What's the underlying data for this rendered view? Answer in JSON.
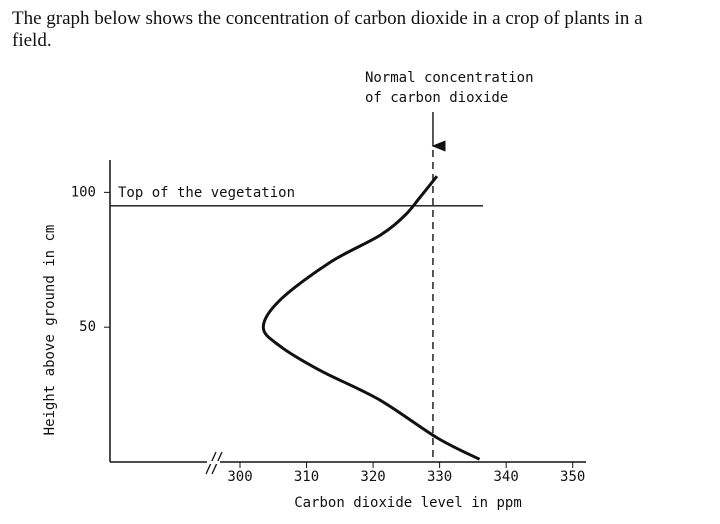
{
  "question": "The graph below shows the concentration of carbon dioxide in a crop of plants in a field.",
  "chart_data": {
    "type": "line",
    "xlabel": "Carbon dioxide level in ppm",
    "ylabel": "Height above ground in cm",
    "x": [
      336,
      329.6,
      321,
      312,
      306,
      303.5,
      306,
      313.5,
      321,
      324.8,
      327,
      329.6
    ],
    "values": [
      1,
      9,
      23,
      34,
      43,
      50,
      60,
      74,
      84,
      91.5,
      98,
      106
    ],
    "color": "#111111",
    "xlim": [
      300,
      352
    ],
    "xticks": [
      300,
      310,
      320,
      330,
      340,
      350
    ],
    "ylim": [
      0,
      112
    ],
    "yticks": [
      50,
      100
    ],
    "reference_lines": [
      {
        "label": [
          "Top of the vegetation"
        ],
        "y": 95
      },
      {
        "label": [
          "Normal concentration",
          "of carbon dioxide"
        ],
        "x": 329
      }
    ]
  }
}
